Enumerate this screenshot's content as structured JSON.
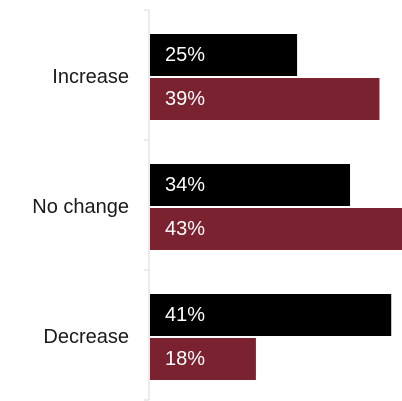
{
  "chart_data": {
    "type": "bar",
    "orientation": "horizontal",
    "categories": [
      "Increase",
      "No change",
      "Decrease"
    ],
    "series": [
      {
        "values": [
          25,
          34,
          41
        ],
        "labels": [
          "25%",
          "34%",
          "41%"
        ],
        "color": "#000000"
      },
      {
        "values": [
          39,
          43,
          18
        ],
        "labels": [
          "39%",
          "43%",
          "18%"
        ],
        "color": "#7b2230"
      }
    ],
    "xlim": [
      0,
      43
    ],
    "grid": false,
    "legend": "none",
    "title": "",
    "xlabel": "",
    "ylabel": ""
  }
}
